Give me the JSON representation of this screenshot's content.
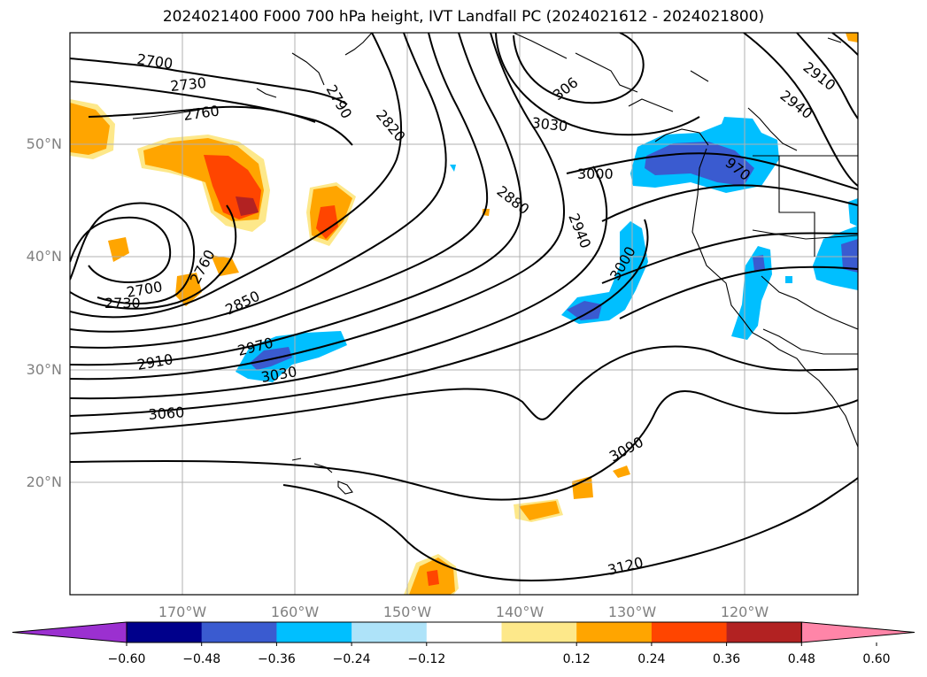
{
  "title": "2024021400 F000 700 hPa height, IVT Landfall PC (2024021612 - 2024021800)",
  "lat_labels": [
    "50°N",
    "40°N",
    "30°N",
    "20°N"
  ],
  "lon_labels": [
    "170°W",
    "160°W",
    "150°W",
    "140°W",
    "130°W",
    "120°W"
  ],
  "contour_labels": [
    "2700",
    "2730",
    "2760",
    "2790",
    "2820",
    "2880",
    "2940",
    "3000",
    "3030",
    "306",
    "2910",
    "2940",
    "970",
    "2760",
    "2700",
    "2730",
    "2850",
    "2970",
    "3030",
    "2910",
    "3060",
    "3000",
    "3090",
    "3120"
  ],
  "colorbar": {
    "ticks": [
      "−0.60",
      "−0.48",
      "−0.36",
      "−0.24",
      "−0.12",
      "0.12",
      "0.24",
      "0.36",
      "0.48",
      "0.60"
    ],
    "colors": [
      "#9b30d0",
      "#00008b",
      "#3a5bd0",
      "#00bfff",
      "#aee3f9",
      "#ffffff",
      "#fde88a",
      "#ffa500",
      "#ff4500",
      "#b22222",
      "#ff85a8"
    ]
  }
}
